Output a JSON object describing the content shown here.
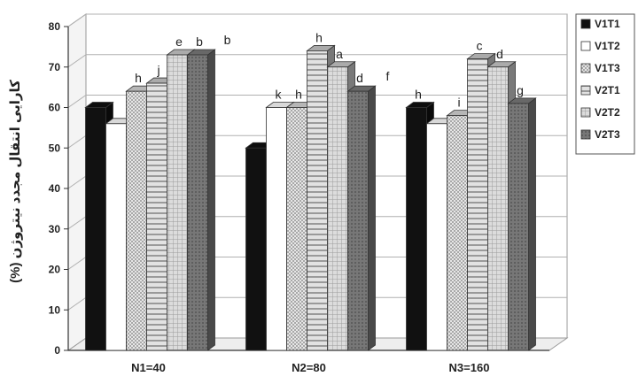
{
  "chart_data": {
    "type": "bar",
    "ylabel": "کارایی انتقال مجدد نیتروژن (%)",
    "ylim": [
      0,
      80
    ],
    "yticks": [
      0,
      10,
      20,
      30,
      40,
      50,
      60,
      70,
      80
    ],
    "grid": true,
    "legend_position": "right",
    "categories": [
      "N1=40",
      "N2=80",
      "N3=160"
    ],
    "series": [
      {
        "name": "V1T1",
        "values": [
          60,
          50,
          60
        ],
        "labels": [
          "",
          "",
          "h"
        ],
        "color": "#111111",
        "pattern": "solid"
      },
      {
        "name": "V1T2",
        "values": [
          56,
          60,
          56
        ],
        "labels": [
          "",
          "k",
          ""
        ],
        "color": "#ffffff",
        "pattern": "white"
      },
      {
        "name": "V1T3",
        "values": [
          64,
          60,
          58
        ],
        "labels": [
          "h",
          "h",
          "i"
        ],
        "color": "#d6d6d6",
        "pattern": "dots"
      },
      {
        "name": "V2T1",
        "values": [
          66,
          74,
          72
        ],
        "labels": [
          "j",
          "h",
          "c"
        ],
        "color": "#c8c8c8",
        "pattern": "hstripes"
      },
      {
        "name": "V2T2",
        "values": [
          73,
          70,
          70
        ],
        "labels": [
          "e",
          "a",
          "d"
        ],
        "color": "#c9c9c9",
        "pattern": "grid"
      },
      {
        "name": "V2T3",
        "values": [
          73,
          64,
          61
        ],
        "labels": [
          "b",
          "d",
          "g"
        ],
        "color": "#7a7a7a",
        "pattern": "dark"
      }
    ],
    "annotations": [
      {
        "text": "b",
        "category": "N1=40"
      },
      {
        "text": "f",
        "category": "N2=80"
      }
    ]
  }
}
